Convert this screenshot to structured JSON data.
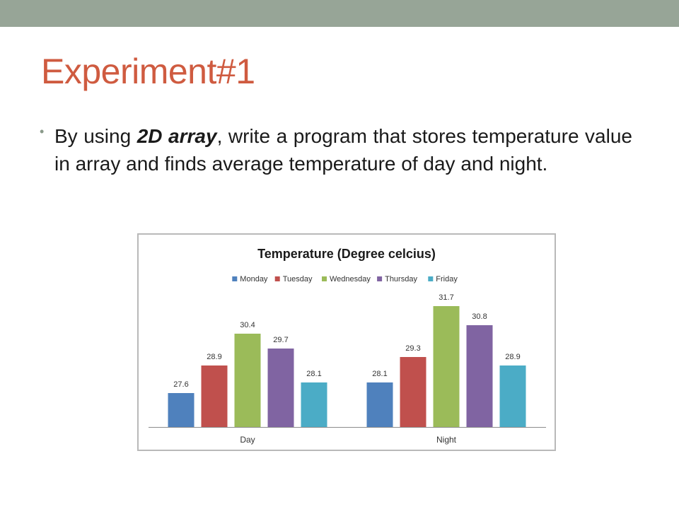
{
  "slide": {
    "title": "Experiment#1",
    "bullet": {
      "part1": "By using ",
      "emphasis": "2D array",
      "part2": ", write a program that stores temperature value in array and finds average temperature of day and night."
    }
  },
  "colors": {
    "top_bar": "#97a597",
    "title": "#cf5b40"
  },
  "chart_data": {
    "type": "bar",
    "title": "Temperature (Degree celcius)",
    "categories": [
      "Day",
      "Night"
    ],
    "series": [
      {
        "name": "Monday",
        "color": "#4f81bd",
        "values": [
          27.6,
          28.1
        ]
      },
      {
        "name": "Tuesday",
        "color": "#c0504d",
        "values": [
          28.9,
          29.3
        ]
      },
      {
        "name": "Wednesday",
        "color": "#9bbb59",
        "values": [
          30.4,
          31.7
        ]
      },
      {
        "name": "Thursday",
        "color": "#8064a2",
        "values": [
          29.7,
          30.8
        ]
      },
      {
        "name": "Friday",
        "color": "#4bacc6",
        "values": [
          28.1,
          28.9
        ]
      }
    ],
    "ylim": [
      26,
      32
    ],
    "grid": false,
    "legend_position": "top",
    "xlabel": "",
    "ylabel": ""
  }
}
